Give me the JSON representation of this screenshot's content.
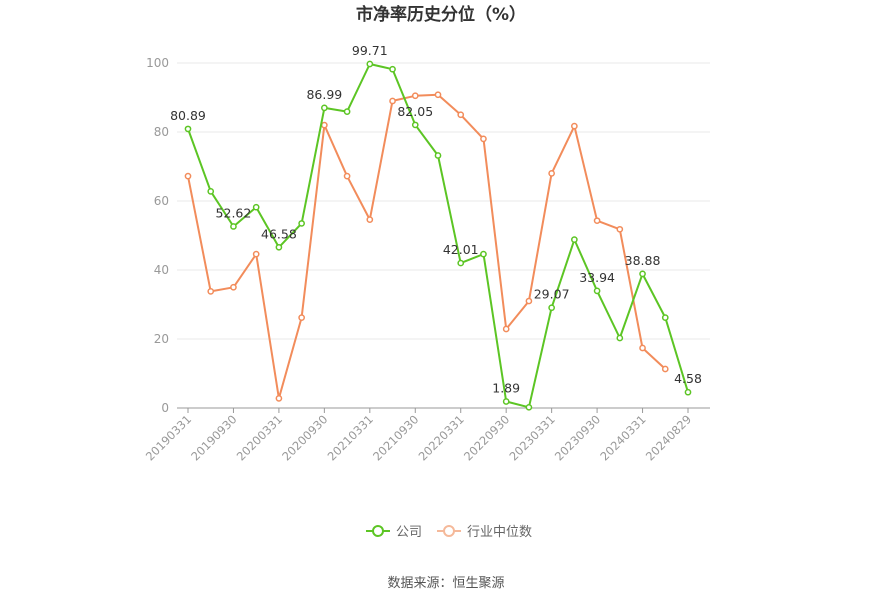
{
  "chart_data": {
    "type": "line",
    "title": "市净率历史分位（%）",
    "source": "数据来源：恒生聚源",
    "ylim": [
      0,
      100
    ],
    "yticks": [
      0,
      20,
      40,
      60,
      80,
      100
    ],
    "x": [
      "20190331",
      "20190630",
      "20190930",
      "20191231",
      "20200331",
      "20200630",
      "20200930",
      "20201231",
      "20210331",
      "20210630",
      "20210930",
      "20211231",
      "20220331",
      "20220630",
      "20220930",
      "20221231",
      "20230331",
      "20230630",
      "20230930",
      "20231231",
      "20240331",
      "20240630",
      "20240829"
    ],
    "x_tick_labels": [
      "20190331",
      "20190930",
      "20200331",
      "20200930",
      "20210331",
      "20210930",
      "20220331",
      "20220930",
      "20230331",
      "20230930",
      "20240331",
      "20240829"
    ],
    "grid": true,
    "legend_position": "bottom",
    "series": [
      {
        "name": "公司",
        "color": "#5cc524",
        "values": [
          80.89,
          62.8,
          52.62,
          58.2,
          46.58,
          53.5,
          86.99,
          85.9,
          99.71,
          98.2,
          82.05,
          73.2,
          42.01,
          44.6,
          1.89,
          0.2,
          29.07,
          48.8,
          33.94,
          20.3,
          38.88,
          26.2,
          4.58
        ],
        "labeled_values": [
          {
            "index": 0,
            "text": "80.89"
          },
          {
            "index": 2,
            "text": "52.62"
          },
          {
            "index": 4,
            "text": "46.58"
          },
          {
            "index": 6,
            "text": "86.99"
          },
          {
            "index": 8,
            "text": "99.71"
          },
          {
            "index": 10,
            "text": "82.05"
          },
          {
            "index": 12,
            "text": "42.01"
          },
          {
            "index": 14,
            "text": "1.89"
          },
          {
            "index": 16,
            "text": "29.07"
          },
          {
            "index": 18,
            "text": "33.94"
          },
          {
            "index": 20,
            "text": "38.88"
          },
          {
            "index": 22,
            "text": "4.58"
          }
        ]
      },
      {
        "name": "行业中位数",
        "color": "#f28c5b",
        "values": [
          67.2,
          33.8,
          35.0,
          44.6,
          2.8,
          26.2,
          82.0,
          67.2,
          54.6,
          89.0,
          90.5,
          90.8,
          85.0,
          78.0,
          22.9,
          31.0,
          68.0,
          81.7,
          54.3,
          51.8,
          17.4,
          11.3,
          null
        ]
      }
    ]
  }
}
